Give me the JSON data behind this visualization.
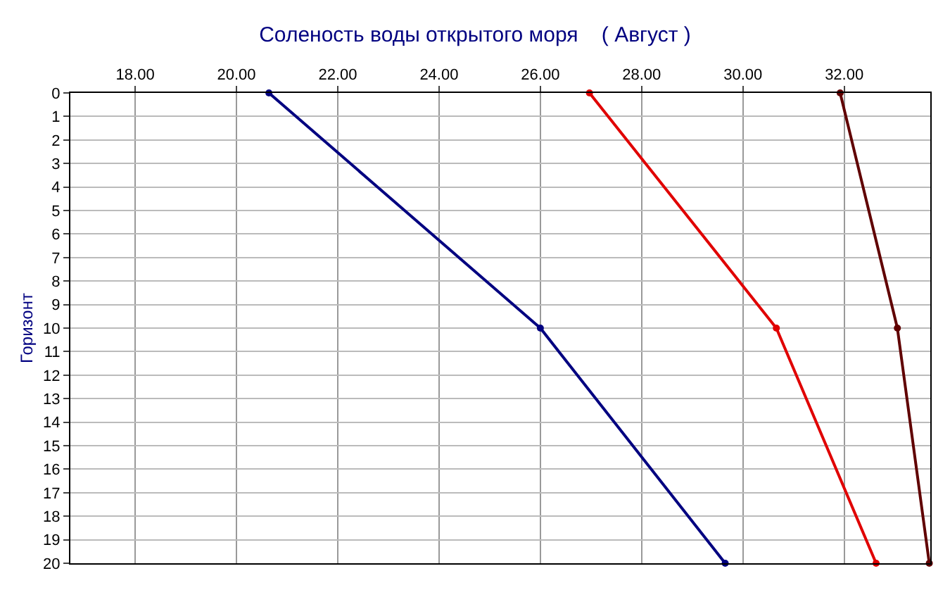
{
  "chart_data": {
    "type": "line",
    "title": "Соленость воды открытого моря    ( Август )",
    "ylabel": "Горизонт",
    "xlim": [
      16.72,
      33.7
    ],
    "xticks": [
      {
        "value": 18,
        "label": "18.00"
      },
      {
        "value": 20,
        "label": "20.00"
      },
      {
        "value": 22,
        "label": "22.00"
      },
      {
        "value": 24,
        "label": "24.00"
      },
      {
        "value": 26,
        "label": "26.00"
      },
      {
        "value": 28,
        "label": "28.00"
      },
      {
        "value": 30,
        "label": "30.00"
      },
      {
        "value": 32,
        "label": "32.00"
      }
    ],
    "ylim": [
      20,
      0
    ],
    "yticks": [
      0,
      1,
      2,
      3,
      4,
      5,
      6,
      7,
      8,
      9,
      10,
      11,
      12,
      13,
      14,
      15,
      16,
      17,
      18,
      19,
      20
    ],
    "grid": true,
    "marker": "circle",
    "line_style": "solid",
    "series": [
      {
        "color": "#000080",
        "x": [
          20.64,
          26.0,
          29.65
        ],
        "values": [
          0,
          10,
          20
        ]
      },
      {
        "color": "#e00000",
        "x": [
          26.97,
          30.66,
          32.63
        ],
        "values": [
          0,
          10,
          20
        ]
      },
      {
        "color": "#600000",
        "x": [
          31.92,
          33.05,
          33.68
        ],
        "values": [
          0,
          10,
          20
        ]
      }
    ]
  }
}
